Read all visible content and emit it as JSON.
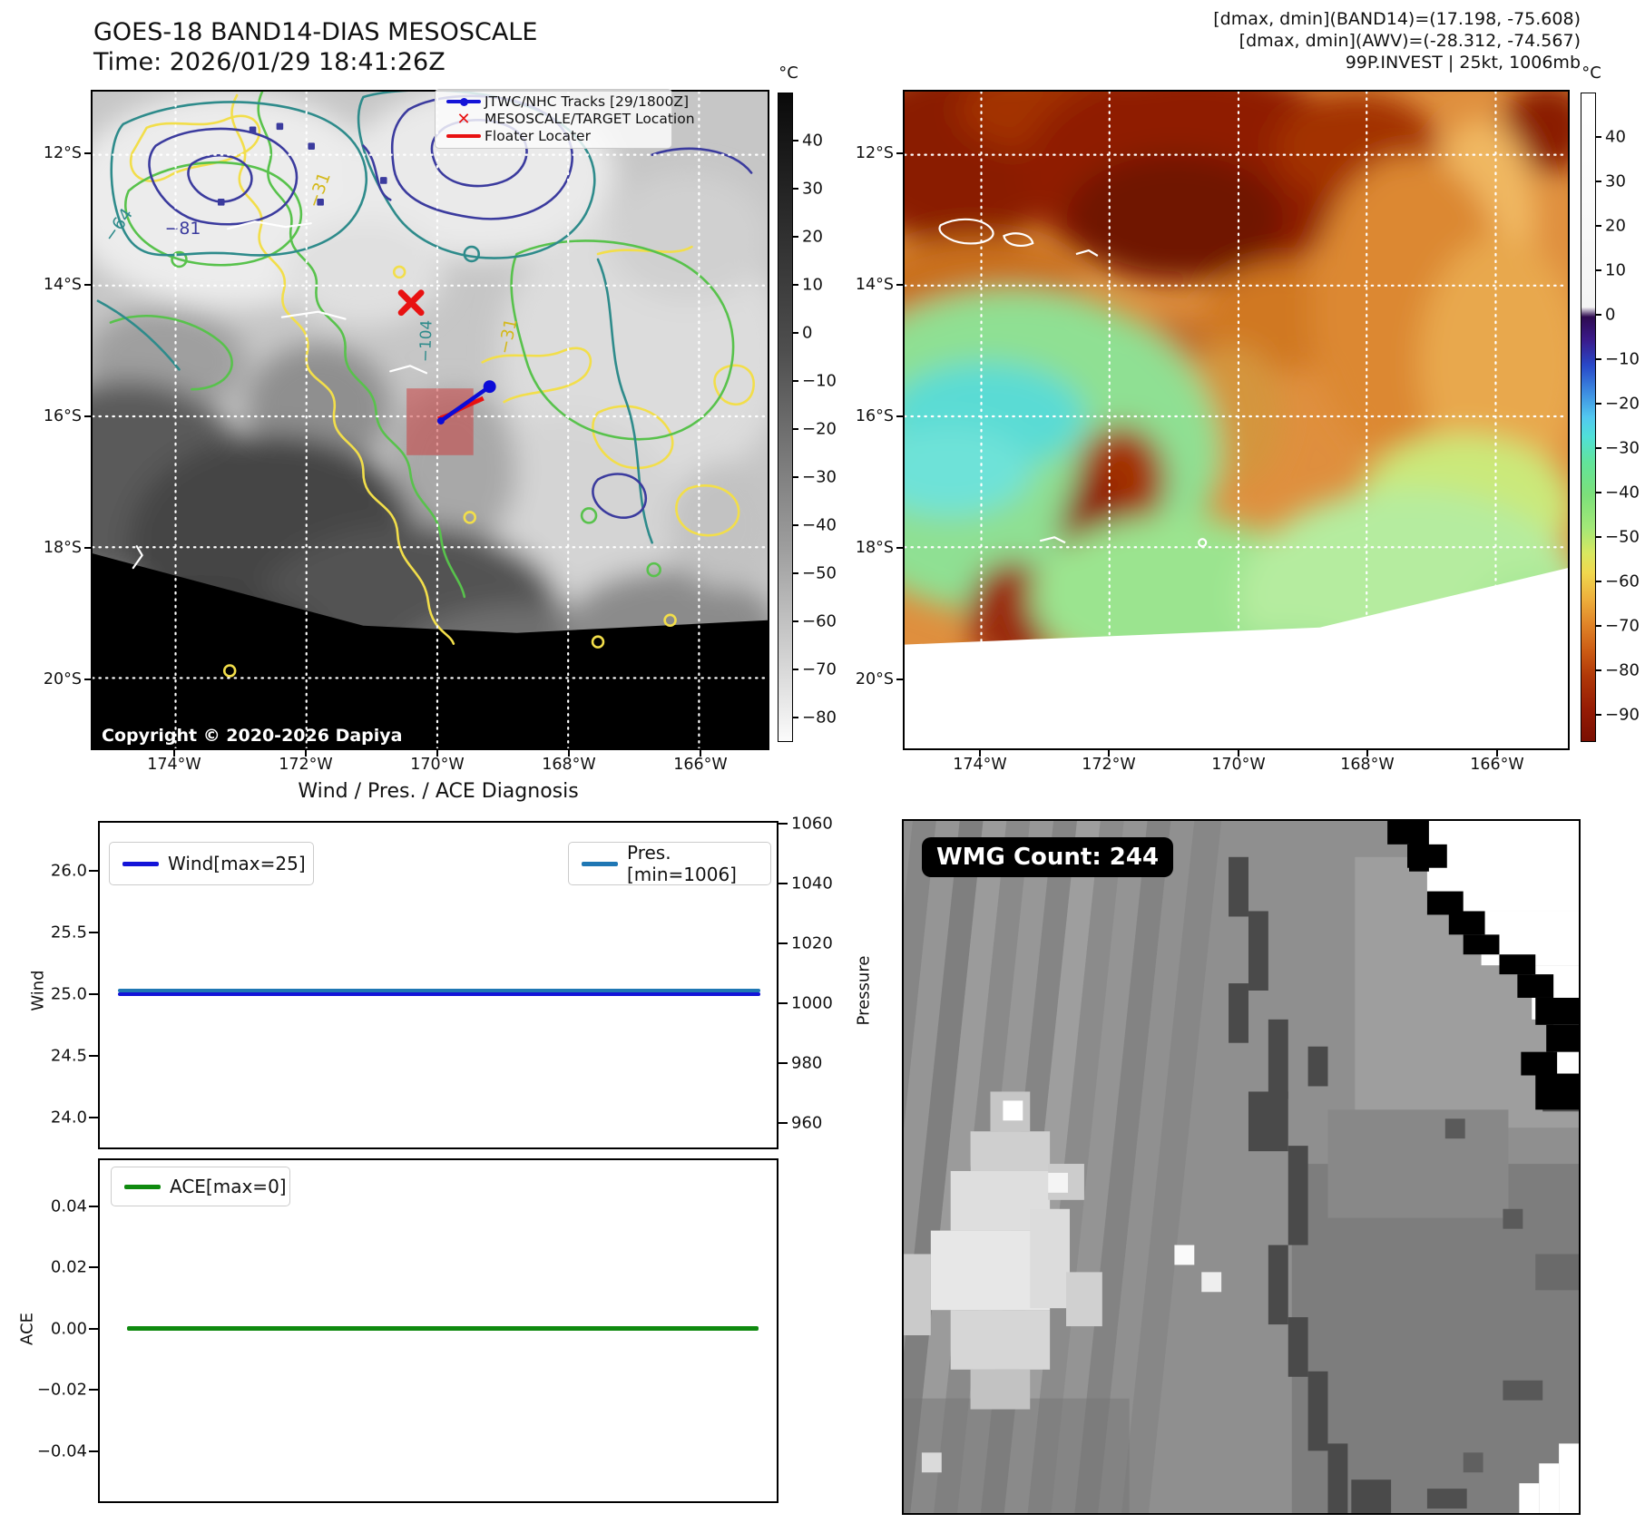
{
  "band14": {
    "title": "GOES-18 BAND14-DIAS MESOSCALE",
    "time_line": "Time: 2026/01/29 18:41:26Z",
    "legend": {
      "tracks": "JTWC/NHC Tracks [29/1800Z]",
      "target": "MESOSCALE/TARGET Location",
      "floater": "Floater Locater"
    },
    "copyright": "Copyright © 2020-2026 Dapiya",
    "contour_labels": {
      "l81": "−81",
      "l64": "−64",
      "l104": "−104",
      "l31a": "−31",
      "l31b": "−31"
    },
    "lat_ticks": [
      "12°S",
      "14°S",
      "16°S",
      "18°S",
      "20°S"
    ],
    "lon_ticks": [
      "174°W",
      "172°W",
      "170°W",
      "168°W",
      "166°W"
    ],
    "colorbar_unit": "°C",
    "colorbar_ticks": [
      "40",
      "30",
      "20",
      "10",
      "0",
      "−10",
      "−20",
      "−30",
      "−40",
      "−50",
      "−60",
      "−70",
      "−80"
    ]
  },
  "awv": {
    "info_line1": "[dmax, dmin](BAND14)=(17.198, -75.608)",
    "info_line2": "[dmax, dmin](AWV)=(-28.312, -74.567)",
    "info_line3": "99P.INVEST | 25kt, 1006mb",
    "lat_ticks": [
      "12°S",
      "14°S",
      "16°S",
      "18°S",
      "20°S"
    ],
    "lon_ticks": [
      "174°W",
      "172°W",
      "170°W",
      "168°W",
      "166°W"
    ],
    "colorbar_unit": "°C",
    "colorbar_ticks": [
      "40",
      "30",
      "20",
      "10",
      "0",
      "−10",
      "−20",
      "−30",
      "−40",
      "−50",
      "−60",
      "−70",
      "−80",
      "−90"
    ]
  },
  "diagnosis": {
    "title": "Wind / Pres. / ACE Diagnosis",
    "wind_legend": "Wind[max=25]",
    "pres_legend": "Pres.[min=1006]",
    "ace_legend": "ACE[max=0]",
    "wind_ylabel": "Wind",
    "pres_ylabel": "Pressure",
    "ace_ylabel": "ACE",
    "wind_ticks": [
      "26.0",
      "25.5",
      "25.0",
      "24.5",
      "24.0"
    ],
    "pres_ticks": [
      "1060",
      "1040",
      "1020",
      "1000",
      "980",
      "960"
    ],
    "ace_ticks": [
      "0.04",
      "0.02",
      "0.00",
      "−0.02",
      "−0.04"
    ]
  },
  "wmg": {
    "count_label": "WMG Count: 244"
  },
  "chart_data": [
    {
      "type": "line",
      "title": "Wind / Pres. / ACE Diagnosis",
      "series": [
        {
          "name": "Wind[max=25]",
          "axis": "left",
          "values": [
            25,
            25
          ],
          "color": "#1414d8"
        },
        {
          "name": "Pres.[min=1006]",
          "axis": "right",
          "values": [
            1006,
            1006
          ],
          "color": "#1f77b4"
        }
      ],
      "ylabel_left": "Wind",
      "ylabel_right": "Pressure",
      "ylim_left": [
        23.75,
        26.25
      ],
      "ylim_right": [
        948,
        1064
      ],
      "yticks_left": [
        26.0,
        25.5,
        25.0,
        24.5,
        24.0
      ],
      "yticks_right": [
        1060,
        1040,
        1020,
        1000,
        980,
        960
      ],
      "grid": false,
      "legend_position": "upper-left and upper-right"
    },
    {
      "type": "line",
      "series": [
        {
          "name": "ACE[max=0]",
          "values": [
            0,
            0
          ],
          "color": "#0f8a0f"
        }
      ],
      "ylabel": "ACE",
      "ylim": [
        -0.055,
        0.055
      ],
      "yticks": [
        0.04,
        0.02,
        0.0,
        -0.02,
        -0.04
      ],
      "grid": false,
      "legend_position": "upper-left"
    }
  ]
}
